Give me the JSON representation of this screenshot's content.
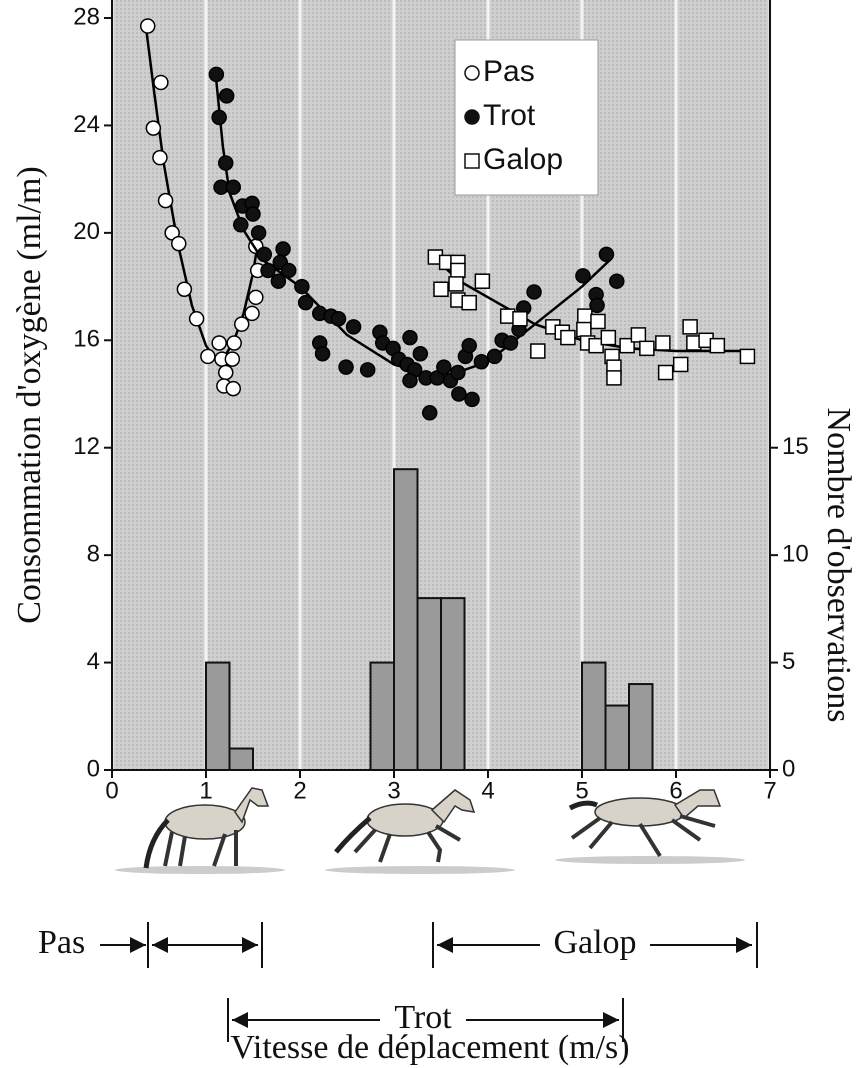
{
  "chart_data": {
    "type": "scatter",
    "xlabel": "Vitesse de déplacement (m/s)",
    "ylabel": "Consommation d'oxygène (ml/m)",
    "y2label": "Nombre d'observations",
    "xlim": [
      0,
      7
    ],
    "ylim": [
      0,
      28
    ],
    "y2lim": [
      0,
      35
    ],
    "xticks": [
      0,
      1,
      2,
      3,
      4,
      5,
      6,
      7
    ],
    "yticks": [
      0,
      4,
      8,
      12,
      16,
      20,
      24,
      28
    ],
    "y2ticks": [
      0,
      5,
      10,
      15
    ],
    "grid": "x",
    "legend": "top-right",
    "series": [
      {
        "name": "Pas",
        "marker": "open-circle",
        "color": "#000000",
        "x": [
          0.38,
          0.52,
          0.44,
          0.51,
          0.57,
          0.64,
          0.71,
          0.77,
          0.9,
          1.02,
          1.14,
          1.17,
          1.21,
          1.28,
          1.3,
          1.19,
          1.29,
          1.38,
          1.49,
          1.53,
          1.55,
          1.53
        ],
        "values": [
          27.7,
          25.6,
          23.9,
          22.8,
          21.2,
          20,
          19.6,
          17.9,
          16.8,
          15.4,
          15.9,
          15.3,
          14.8,
          15.3,
          15.9,
          14.3,
          14.2,
          16.6,
          17,
          17.6,
          18.6,
          19.5
        ],
        "fit_x": [
          0.36,
          0.45,
          0.55,
          0.7,
          0.85,
          1.0,
          1.1,
          1.2,
          1.3,
          1.4,
          1.5,
          1.56
        ],
        "fit_y": [
          27.7,
          25.2,
          22.6,
          19.6,
          17.3,
          15.8,
          15.3,
          15.4,
          16.0,
          17.0,
          18.5,
          19.8
        ]
      },
      {
        "name": "Trot",
        "marker": "filled-circle",
        "color": "#000000",
        "x": [
          1.11,
          1.22,
          1.14,
          1.21,
          1.16,
          1.29,
          1.39,
          1.49,
          1.5,
          1.37,
          1.56,
          1.62,
          1.66,
          1.77,
          1.82,
          1.79,
          1.88,
          2.02,
          2.06,
          2.21,
          2.33,
          2.41,
          2.21,
          2.24,
          2.49,
          2.57,
          2.72,
          2.85,
          2.88,
          2.99,
          3.05,
          3.14,
          3.17,
          3.22,
          3.28,
          3.34,
          3.46,
          3.53,
          3.38,
          3.17,
          3.6,
          3.68,
          3.76,
          3.83,
          3.69,
          3.8,
          3.93,
          4.07,
          4.15,
          4.24,
          4.33,
          4.38,
          4.49,
          5.01,
          5.15,
          5.26,
          5.37,
          5.16
        ],
        "values": [
          25.9,
          25.1,
          24.3,
          22.6,
          21.7,
          21.7,
          21,
          21.1,
          20.7,
          20.3,
          20,
          19.2,
          18.6,
          18.2,
          19.4,
          18.9,
          18.6,
          18,
          17.4,
          17,
          16.9,
          16.8,
          15.9,
          15.5,
          15,
          16.5,
          14.9,
          16.3,
          15.9,
          15.7,
          15.3,
          15.1,
          16.1,
          14.9,
          15.5,
          14.6,
          14.6,
          15,
          13.3,
          14.5,
          14.5,
          14.8,
          15.4,
          13.8,
          14,
          15.8,
          15.2,
          15.4,
          16,
          15.9,
          16.4,
          17.2,
          17.8,
          18.4,
          17.7,
          19.2,
          18.2,
          17.3
        ],
        "fit_x": [
          1.1,
          1.18,
          1.25,
          1.4,
          1.6,
          2.0,
          2.5,
          3.0,
          3.5,
          4.0,
          4.5,
          5.0,
          5.3
        ],
        "fit_y": [
          26,
          23.2,
          21.5,
          20.1,
          19.0,
          18.0,
          16.2,
          15.1,
          14.6,
          15.2,
          16.6,
          18.0,
          19.0
        ]
      },
      {
        "name": "Galop",
        "marker": "open-square",
        "color": "#000000",
        "x": [
          3.44,
          3.56,
          3.68,
          3.68,
          3.5,
          3.66,
          3.68,
          3.8,
          3.94,
          4.21,
          4.34,
          4.53,
          4.69,
          4.79,
          4.85,
          5.03,
          5.02,
          5.06,
          5.17,
          5.15,
          5.28,
          5.32,
          5.34,
          5.34,
          5.48,
          5.6,
          5.69,
          5.86,
          5.89,
          6.05,
          6.15,
          6.19,
          6.32,
          6.44,
          6.76
        ],
        "values": [
          19.1,
          18.9,
          18.9,
          18.6,
          17.9,
          18.1,
          17.5,
          17.4,
          18.2,
          16.9,
          16.8,
          15.6,
          16.5,
          16.3,
          16.1,
          16.9,
          16.4,
          15.9,
          16.7,
          15.8,
          16.1,
          15.4,
          15,
          14.6,
          15.8,
          16.2,
          15.7,
          15.9,
          14.8,
          15.1,
          16.5,
          15.9,
          16,
          15.8,
          15.4
        ],
        "fit_x": [
          3.45,
          3.7,
          4.0,
          4.5,
          5.0,
          5.5,
          6.0,
          6.7
        ],
        "fit_y": [
          19.0,
          18.2,
          17.6,
          16.6,
          16.0,
          15.7,
          15.6,
          15.6
        ]
      }
    ],
    "histogram": {
      "type": "histogram",
      "axis": "y2",
      "color": "#9a9a9a",
      "bins": [
        1,
        1.25,
        1.5,
        1.75,
        2,
        2.25,
        2.5,
        2.75,
        3,
        3.25,
        3.5,
        3.75,
        4,
        4.25,
        4.5,
        4.75,
        5,
        5.25,
        5.5,
        5.75
      ],
      "values": [
        5,
        1,
        0,
        0,
        0,
        0,
        0,
        5,
        14,
        8,
        8,
        0,
        0,
        0,
        0,
        0,
        5,
        3,
        4
      ]
    },
    "gaits": [
      "Pas",
      "Trot",
      "Galop"
    ]
  }
}
